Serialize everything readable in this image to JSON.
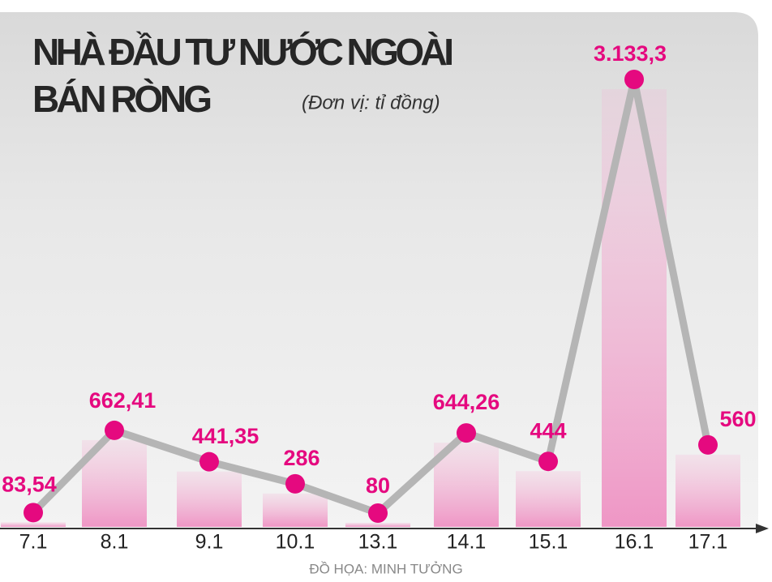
{
  "chart_data": {
    "type": "bar",
    "title": [
      "NHÀ ĐẦU TƯ NƯỚC NGOÀI",
      "BÁN RÒNG"
    ],
    "subtitle": "(Đơn vị: tỉ đồng)",
    "source": "ĐỒ HỌA: MINH TƯỞNG",
    "categories": [
      "7.1",
      "8.1",
      "9.1",
      "10.1",
      "13.1",
      "14.1",
      "15.1",
      "16.1",
      "17.1"
    ],
    "values": [
      83.54,
      662.41,
      441.35,
      286,
      80,
      644.26,
      444,
      3133.3,
      560
    ],
    "value_labels": [
      "83,54",
      "662,41",
      "441,35",
      "286",
      "80",
      "644,26",
      "444",
      "3.133,3",
      "560"
    ],
    "color": "#e5097f",
    "line_color": "#b5b5b5"
  }
}
